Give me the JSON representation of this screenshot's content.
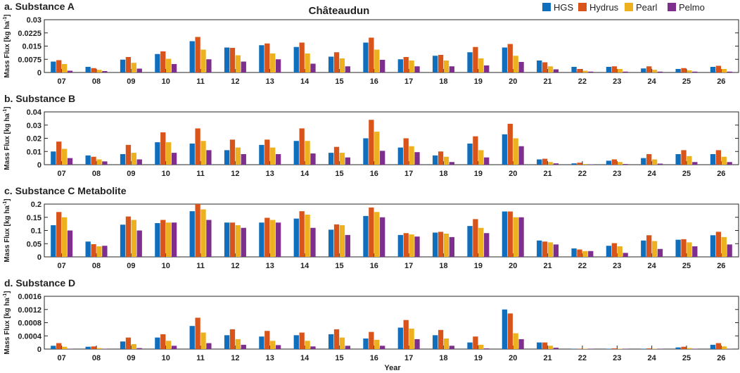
{
  "figure": {
    "title": "Châteaudun",
    "xlabel": "Year"
  },
  "colors": {
    "HGS": "#0f6fbd",
    "Hydrus": "#d9541a",
    "Pearl": "#edb120",
    "Pelmo": "#7e2f8e",
    "axis": "#262626"
  },
  "legend": [
    "HGS",
    "Hydrus",
    "Pearl",
    "Pelmo"
  ],
  "chart_data": [
    {
      "type": "bar",
      "title": "a. Substance A",
      "ylabel": "Mass Flux [kg ha",
      "ylabel_sup": "-1",
      "ylabel_end": "]",
      "xlabel": "",
      "ylim": [
        0,
        0.03
      ],
      "yticks": [
        0,
        0.0075,
        0.015,
        0.0225,
        0.03
      ],
      "ytick_labels": [
        "0",
        "0.0075",
        "0.015",
        "0.0225",
        "0.03"
      ],
      "categories": [
        "07",
        "08",
        "09",
        "10",
        "11",
        "12",
        "13",
        "14",
        "15",
        "16",
        "17",
        "18",
        "19",
        "20",
        "21",
        "22",
        "23",
        "24",
        "25",
        "26"
      ],
      "series": [
        {
          "name": "HGS",
          "values": [
            0.0062,
            0.0032,
            0.0073,
            0.0105,
            0.0178,
            0.0142,
            0.0155,
            0.0145,
            0.009,
            0.017,
            0.0075,
            0.0095,
            0.0115,
            0.0142,
            0.0068,
            0.0032,
            0.0032,
            0.0023,
            0.002,
            0.0032
          ]
        },
        {
          "name": "Hydrus",
          "values": [
            0.007,
            0.0025,
            0.0088,
            0.012,
            0.0202,
            0.014,
            0.0165,
            0.017,
            0.0115,
            0.0198,
            0.0088,
            0.01,
            0.0145,
            0.0162,
            0.0058,
            0.002,
            0.0035,
            0.0035,
            0.0025,
            0.0038
          ]
        },
        {
          "name": "Pearl",
          "values": [
            0.0048,
            0.0015,
            0.0055,
            0.0078,
            0.013,
            0.0098,
            0.0108,
            0.0108,
            0.008,
            0.013,
            0.0068,
            0.0068,
            0.008,
            0.0095,
            0.0035,
            0.001,
            0.002,
            0.0015,
            0.0012,
            0.002
          ]
        },
        {
          "name": "Pelmo",
          "values": [
            0.001,
            0.0008,
            0.0022,
            0.0048,
            0.0075,
            0.0062,
            0.0075,
            0.005,
            0.0035,
            0.0072,
            0.0035,
            0.0035,
            0.004,
            0.006,
            0.0018,
            0.0005,
            0.0005,
            0.0005,
            0.0005,
            0.0005
          ]
        }
      ]
    },
    {
      "type": "bar",
      "title": "b. Substance B",
      "ylabel": "Mass Flux [kg ha",
      "ylabel_sup": "-1",
      "ylabel_end": "]",
      "xlabel": "",
      "ylim": [
        0,
        0.04
      ],
      "yticks": [
        0,
        0.01,
        0.02,
        0.03,
        0.04
      ],
      "ytick_labels": [
        "0",
        "0.01",
        "0.02",
        "0.03",
        "0.04"
      ],
      "categories": [
        "07",
        "08",
        "09",
        "10",
        "11",
        "12",
        "13",
        "14",
        "15",
        "16",
        "17",
        "18",
        "19",
        "20",
        "21",
        "22",
        "23",
        "24",
        "25",
        "26"
      ],
      "series": [
        {
          "name": "HGS",
          "values": [
            0.01,
            0.007,
            0.008,
            0.017,
            0.016,
            0.011,
            0.015,
            0.018,
            0.009,
            0.02,
            0.013,
            0.007,
            0.016,
            0.023,
            0.004,
            0.001,
            0.003,
            0.005,
            0.008,
            0.008
          ]
        },
        {
          "name": "Hydrus",
          "values": [
            0.0175,
            0.006,
            0.015,
            0.0245,
            0.0275,
            0.019,
            0.019,
            0.0275,
            0.0135,
            0.034,
            0.02,
            0.01,
            0.0215,
            0.031,
            0.0045,
            0.0015,
            0.004,
            0.008,
            0.011,
            0.011
          ]
        },
        {
          "name": "Pearl",
          "values": [
            0.012,
            0.004,
            0.009,
            0.017,
            0.018,
            0.013,
            0.013,
            0.018,
            0.009,
            0.025,
            0.014,
            0.006,
            0.011,
            0.02,
            0.002,
            0.0005,
            0.002,
            0.004,
            0.0065,
            0.006
          ]
        },
        {
          "name": "Pelmo",
          "values": [
            0.005,
            0.0025,
            0.004,
            0.009,
            0.011,
            0.008,
            0.008,
            0.0085,
            0.0055,
            0.0105,
            0.0095,
            0.002,
            0.0055,
            0.014,
            0.001,
            0.0002,
            0.0005,
            0.0008,
            0.002,
            0.002
          ]
        }
      ]
    },
    {
      "type": "bar",
      "title": "c. Substance C Metabolite",
      "ylabel": "Mass Flux [kg ha",
      "ylabel_sup": "-1",
      "ylabel_end": "]",
      "xlabel": "",
      "ylim": [
        0,
        0.2
      ],
      "yticks": [
        0,
        0.05,
        0.1,
        0.15,
        0.2
      ],
      "ytick_labels": [
        "0",
        "0.05",
        "0.1",
        "0.15",
        "0.2"
      ],
      "categories": [
        "07",
        "08",
        "09",
        "10",
        "11",
        "12",
        "13",
        "14",
        "15",
        "16",
        "17",
        "18",
        "19",
        "20",
        "21",
        "22",
        "23",
        "24",
        "25",
        "26"
      ],
      "series": [
        {
          "name": "HGS",
          "values": [
            0.12,
            0.058,
            0.122,
            0.128,
            0.173,
            0.13,
            0.13,
            0.145,
            0.103,
            0.155,
            0.083,
            0.092,
            0.117,
            0.172,
            0.062,
            0.032,
            0.042,
            0.062,
            0.065,
            0.082
          ]
        },
        {
          "name": "Hydrus",
          "values": [
            0.17,
            0.048,
            0.153,
            0.14,
            0.2,
            0.13,
            0.148,
            0.173,
            0.123,
            0.187,
            0.09,
            0.095,
            0.143,
            0.172,
            0.058,
            0.028,
            0.052,
            0.082,
            0.067,
            0.095
          ]
        },
        {
          "name": "Pearl",
          "values": [
            0.15,
            0.04,
            0.14,
            0.13,
            0.18,
            0.12,
            0.14,
            0.16,
            0.12,
            0.17,
            0.085,
            0.088,
            0.11,
            0.15,
            0.055,
            0.022,
            0.04,
            0.06,
            0.055,
            0.075
          ]
        },
        {
          "name": "Pelmo",
          "values": [
            0.1,
            0.042,
            0.1,
            0.13,
            0.14,
            0.11,
            0.13,
            0.11,
            0.083,
            0.15,
            0.077,
            0.075,
            0.09,
            0.15,
            0.047,
            0.022,
            0.015,
            0.03,
            0.04,
            0.047
          ]
        }
      ]
    },
    {
      "type": "bar",
      "title": "d. Substance D",
      "ylabel": "Mass Flux [kg ha",
      "ylabel_sup": "-1",
      "ylabel_end": "]",
      "xlabel": "Year",
      "ylim": [
        0,
        0.0016
      ],
      "yticks": [
        0,
        0.0004,
        0.0008,
        0.0012,
        0.0016
      ],
      "ytick_labels": [
        "0",
        "0.0004",
        "0.0008",
        "0.0012",
        "0.0016"
      ],
      "categories": [
        "07",
        "08",
        "09",
        "10",
        "11",
        "12",
        "13",
        "14",
        "15",
        "16",
        "17",
        "18",
        "19",
        "20",
        "21",
        "22",
        "23",
        "24",
        "25",
        "26"
      ],
      "series": [
        {
          "name": "HGS",
          "values": [
            0.0001,
            7e-05,
            0.00023,
            0.00035,
            0.0007,
            0.00042,
            0.00038,
            0.00042,
            0.00045,
            0.00032,
            0.00065,
            0.00042,
            0.0002,
            0.0012,
            0.0002,
            1e-05,
            1e-05,
            1e-05,
            5e-05,
            0.00013
          ]
        },
        {
          "name": "Hydrus",
          "values": [
            0.00018,
            8e-05,
            0.00035,
            0.00045,
            0.00095,
            0.0006,
            0.00055,
            0.0005,
            0.0006,
            0.00052,
            0.00088,
            0.00058,
            0.00038,
            0.00108,
            0.0002,
            1e-05,
            2e-05,
            2e-05,
            7e-05,
            0.00018
          ]
        },
        {
          "name": "Pearl",
          "values": [
            7e-05,
            3e-05,
            0.00015,
            0.00025,
            0.0005,
            0.0003,
            0.00025,
            0.00025,
            0.00035,
            0.00028,
            0.00062,
            0.00032,
            0.00013,
            0.00048,
            0.0001,
            1e-05,
            1e-05,
            1e-05,
            3e-05,
            8e-05
          ]
        },
        {
          "name": "Pelmo",
          "values": [
            1e-05,
            1e-05,
            3e-05,
            0.0001,
            0.00018,
            0.00013,
            0.00012,
            8e-05,
            0.0001,
            0.0001,
            0.0003,
            0.0001,
            2e-05,
            0.0003,
            4e-05,
            1e-05,
            1e-05,
            1e-05,
            1e-05,
            1e-05
          ]
        }
      ]
    }
  ]
}
